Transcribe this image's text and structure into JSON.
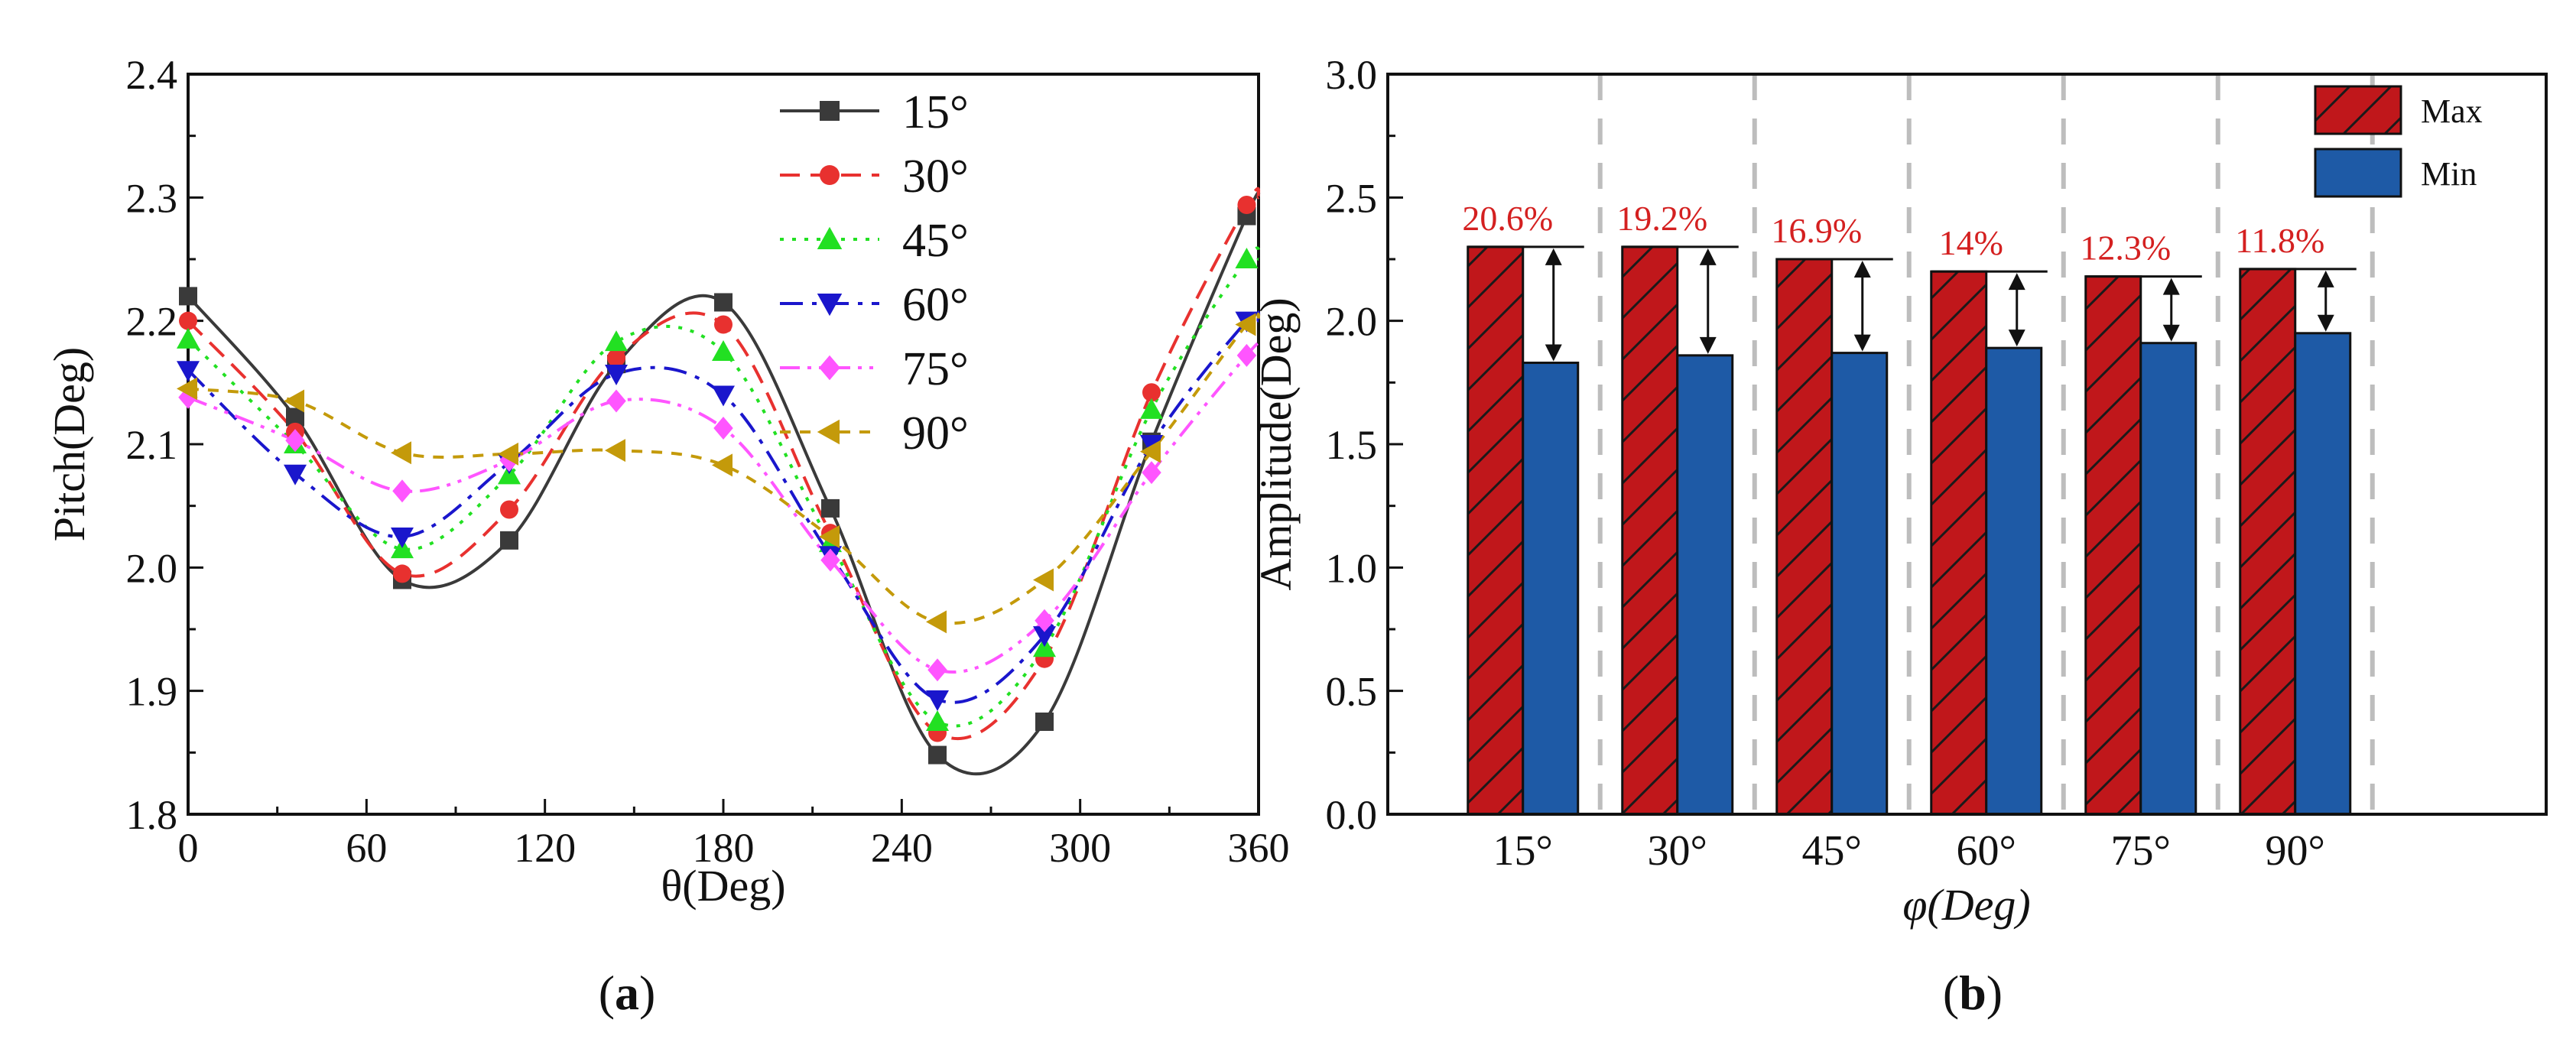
{
  "chart_data": [
    {
      "panel_label": "(a)",
      "panel_letter": "a",
      "type": "line",
      "xlabel": "θ(Deg)",
      "ylabel": "Pitch(Deg)",
      "xlim": [
        0,
        360
      ],
      "ylim": [
        1.8,
        2.4
      ],
      "xticks": [
        "0",
        "60",
        "120",
        "180",
        "240",
        "300",
        "360"
      ],
      "yticks": [
        "1.8",
        "1.9",
        "2.0",
        "2.1",
        "2.2",
        "2.3",
        "2.4"
      ],
      "legend_position": "top-right",
      "x": [
        0,
        36,
        72,
        108,
        144,
        180,
        216,
        252,
        288,
        324,
        356,
        360
      ],
      "series": [
        {
          "name": "15°",
          "color": "#3a3a3a",
          "marker": "square",
          "dash": "solid",
          "values": [
            2.22,
            2.122,
            1.99,
            2.022,
            2.165,
            2.215,
            2.048,
            1.848,
            1.875,
            2.102,
            2.285,
            2.3
          ]
        },
        {
          "name": "30°",
          "color": "#e8312f",
          "marker": "circle",
          "dash": "long",
          "values": [
            2.2,
            2.11,
            1.995,
            2.047,
            2.17,
            2.197,
            2.028,
            1.866,
            1.926,
            2.142,
            2.294,
            2.3
          ]
        },
        {
          "name": "45°",
          "color": "#22e022",
          "marker": "triangle-up",
          "dash": "dot",
          "values": [
            2.185,
            2.1,
            2.015,
            2.075,
            2.183,
            2.175,
            2.02,
            1.875,
            1.935,
            2.128,
            2.25,
            2.25
          ]
        },
        {
          "name": "60°",
          "color": "#1a16cc",
          "marker": "triangle-down",
          "dash": "dashdot",
          "values": [
            2.16,
            2.076,
            2.025,
            2.085,
            2.157,
            2.14,
            2.01,
            1.893,
            1.945,
            2.1,
            2.2,
            2.2
          ]
        },
        {
          "name": "75°",
          "color": "#ff55ff",
          "marker": "diamond",
          "dash": "dashdotdot",
          "values": [
            2.138,
            2.103,
            2.062,
            2.087,
            2.135,
            2.113,
            2.006,
            1.917,
            1.957,
            2.077,
            2.172,
            2.18
          ]
        },
        {
          "name": "90°",
          "color": "#c49a0a",
          "marker": "triangle-left",
          "dash": "short",
          "values": [
            2.145,
            2.135,
            2.093,
            2.092,
            2.095,
            2.083,
            2.025,
            1.956,
            1.99,
            2.094,
            2.197,
            2.2
          ]
        }
      ]
    },
    {
      "panel_label": "(b)",
      "panel_letter": "b",
      "type": "bar",
      "xlabel": "φ(Deg)",
      "ylabel": "Amplitude(Deg)",
      "ylim": [
        0,
        3.0
      ],
      "yticks": [
        "0.0",
        "0.5",
        "1.0",
        "1.5",
        "2.0",
        "2.5",
        "3.0"
      ],
      "categories": [
        "15°",
        "30°",
        "45°",
        "60°",
        "75°",
        "90°"
      ],
      "legend_position": "top-right",
      "series": [
        {
          "name": "Max",
          "color": "#c0171b",
          "pattern": "hatch",
          "values": [
            2.3,
            2.3,
            2.25,
            2.2,
            2.18,
            2.21
          ]
        },
        {
          "name": "Min",
          "color": "#1e5aa6",
          "pattern": "solid",
          "values": [
            1.83,
            1.86,
            1.87,
            1.89,
            1.91,
            1.95
          ]
        }
      ],
      "annotations": [
        "20.6%",
        "19.2%",
        "16.9%",
        "14%",
        "12.3%",
        "11.8%"
      ],
      "annotation_color": "#d42020"
    }
  ]
}
